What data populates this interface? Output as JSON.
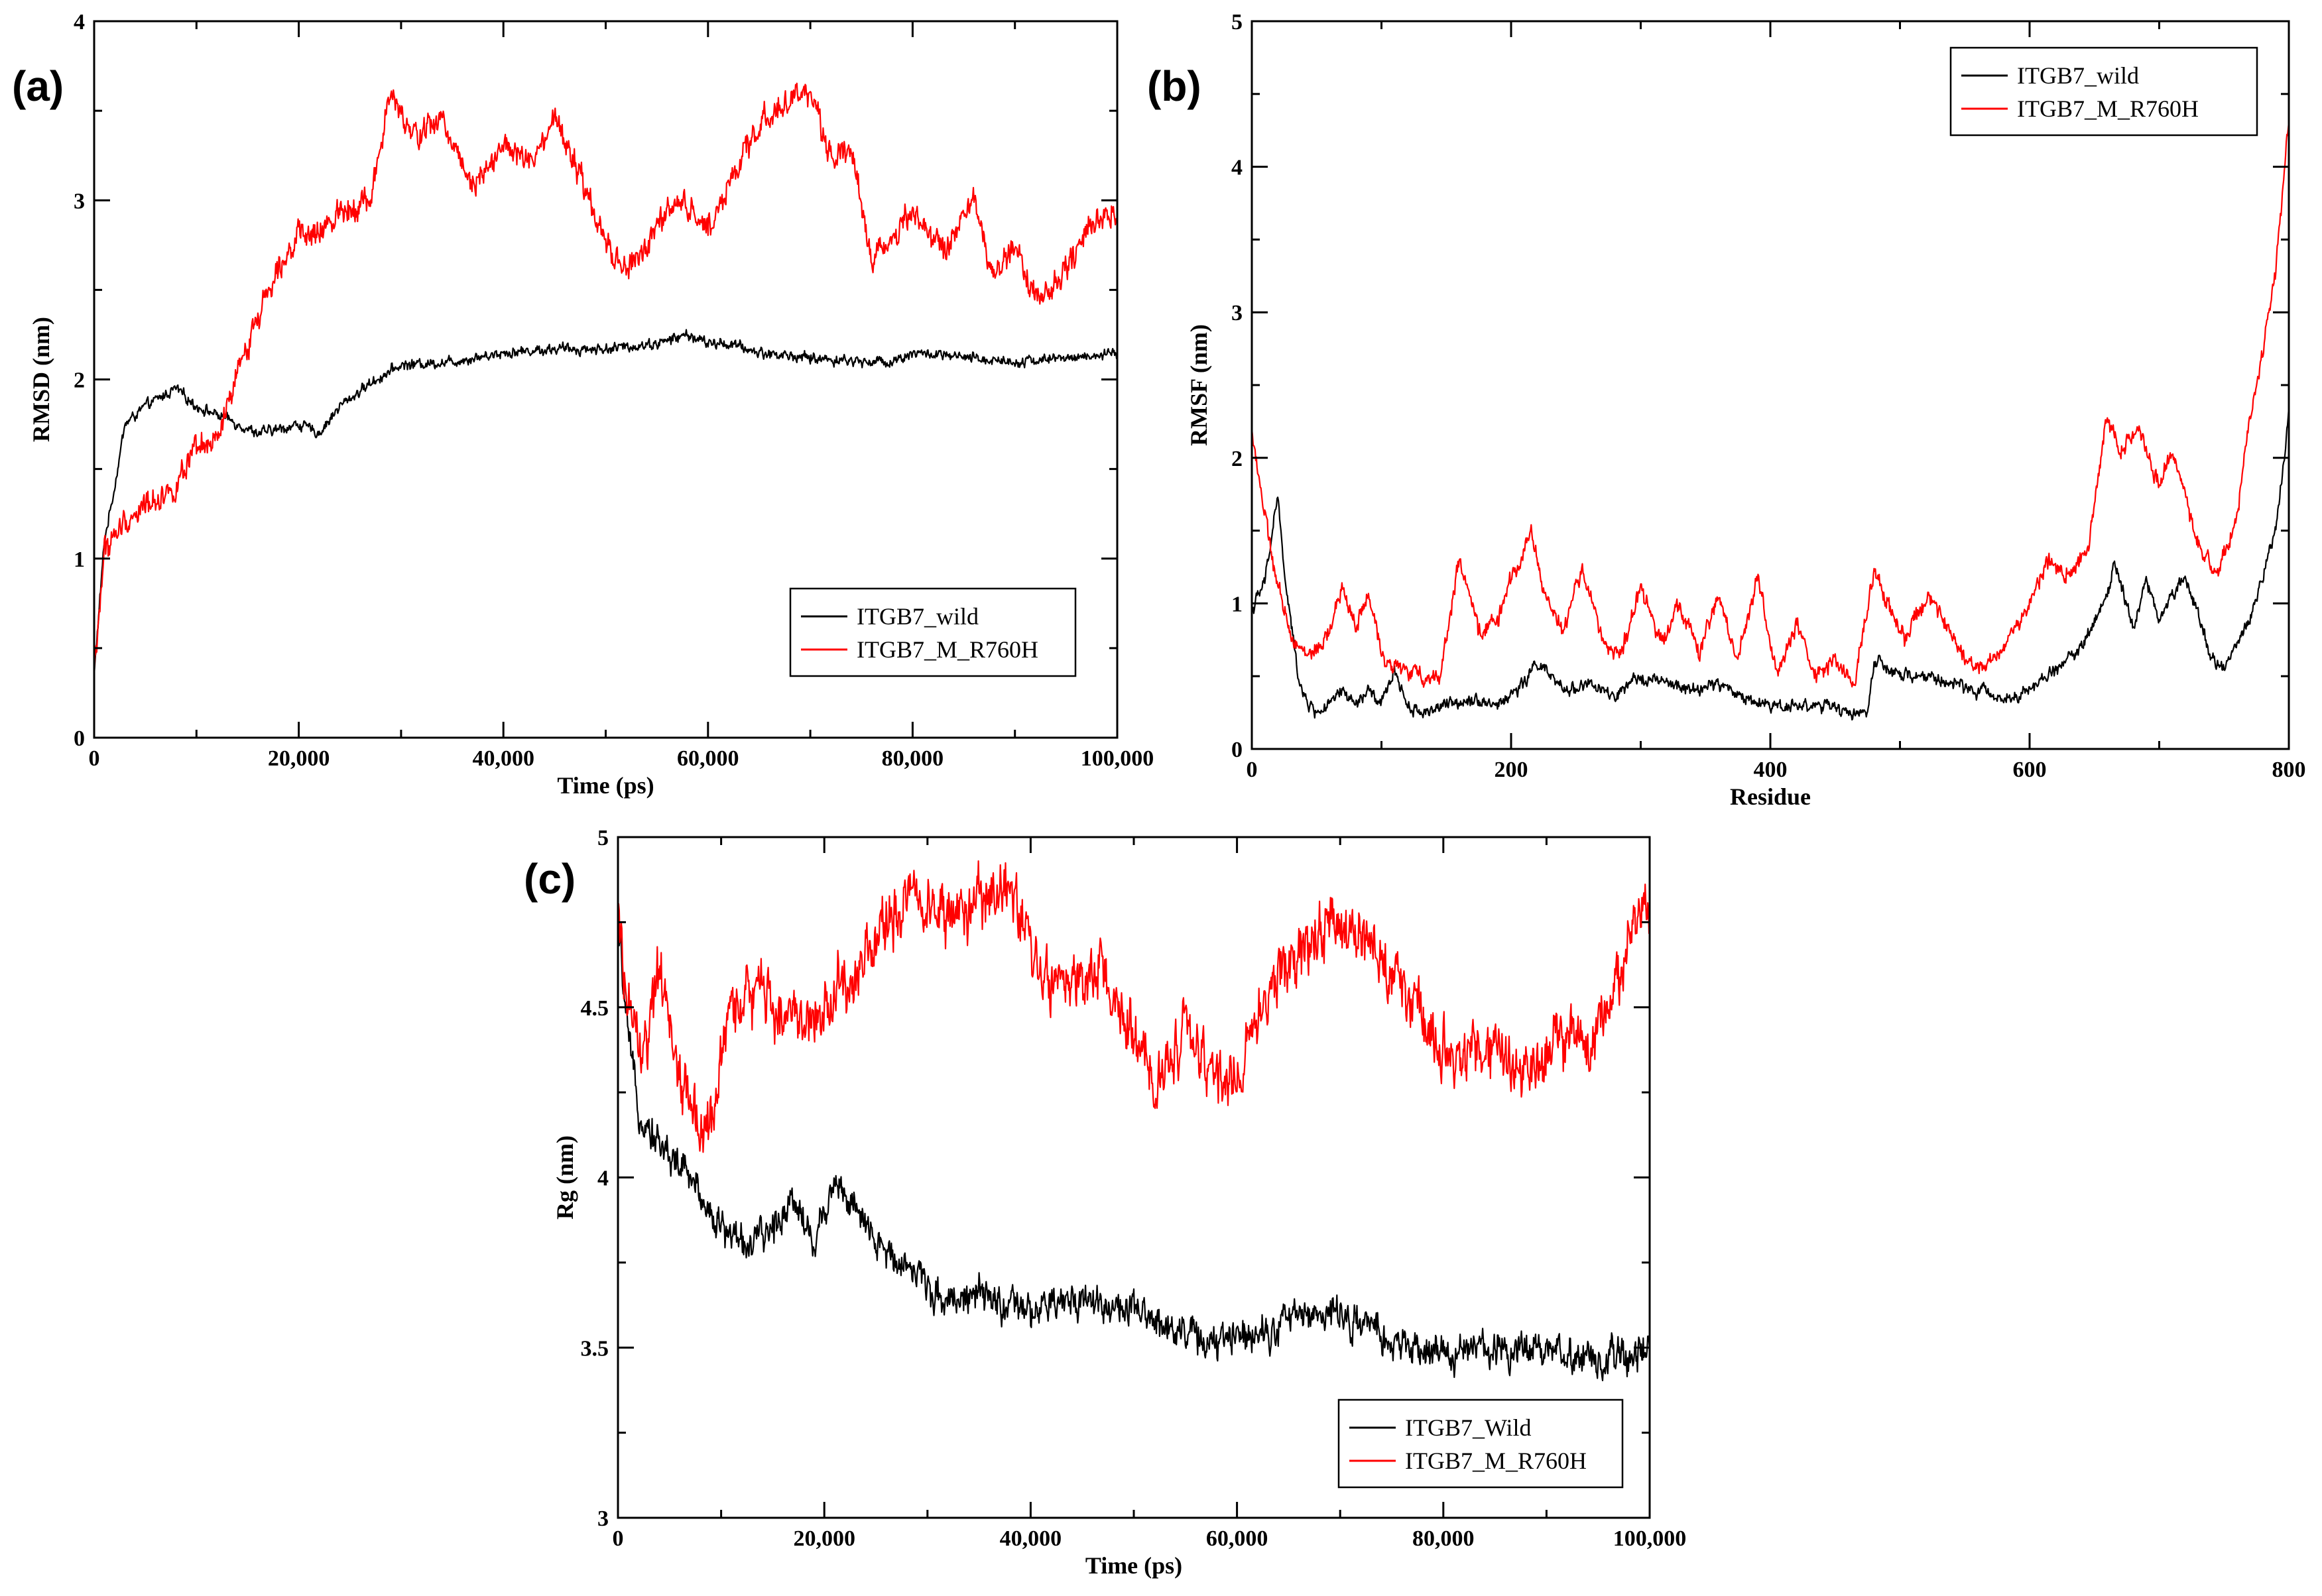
{
  "chart_data": [
    {
      "panel": "(a)",
      "type": "line",
      "xlabel": "Time (ps)",
      "ylabel": "RMSD (nm)",
      "xlim": [
        0,
        100000
      ],
      "ylim": [
        0,
        4
      ],
      "xticks": [
        0,
        20000,
        40000,
        60000,
        80000,
        100000
      ],
      "xtick_labels": [
        "0",
        "20,000",
        "40,000",
        "60,000",
        "80,000",
        "100,000"
      ],
      "yticks": [
        0,
        1,
        2,
        3,
        4
      ],
      "ytick_labels": [
        "0",
        "1",
        "2",
        "3",
        "4"
      ],
      "legend_position": "lower-right",
      "series": [
        {
          "name": "ITGB7_wild",
          "color": "#000000",
          "noise": 0.02,
          "x": [
            0,
            1000,
            2000,
            3000,
            5000,
            8000,
            10000,
            13000,
            16000,
            18000,
            20000,
            22000,
            24000,
            27000,
            30000,
            35000,
            40000,
            45000,
            50000,
            55000,
            58000,
            60000,
            62000,
            65000,
            70000,
            75000,
            78000,
            80000,
            85000,
            90000,
            95000,
            100000
          ],
          "values": [
            0.35,
            1.1,
            1.4,
            1.75,
            1.85,
            1.95,
            1.85,
            1.78,
            1.7,
            1.72,
            1.75,
            1.7,
            1.85,
            1.98,
            2.08,
            2.1,
            2.15,
            2.17,
            2.17,
            2.2,
            2.25,
            2.2,
            2.2,
            2.15,
            2.12,
            2.1,
            2.1,
            2.15,
            2.12,
            2.1,
            2.12,
            2.14
          ]
        },
        {
          "name": "ITGB7_M_R760H",
          "color": "#ff0000",
          "noise": 0.05,
          "x": [
            0,
            1000,
            3000,
            5000,
            8000,
            10000,
            12000,
            15000,
            18000,
            20000,
            22000,
            24000,
            27000,
            29000,
            31000,
            34000,
            37000,
            40000,
            43000,
            45000,
            47000,
            50000,
            52000,
            54000,
            57000,
            60000,
            63000,
            66000,
            68000,
            70000,
            72000,
            74000,
            76000,
            80000,
            83000,
            86000,
            88000,
            90000,
            92000,
            95000,
            97000,
            100000
          ],
          "values": [
            0.35,
            1.05,
            1.2,
            1.3,
            1.4,
            1.6,
            1.65,
            2.2,
            2.65,
            2.8,
            2.8,
            2.95,
            3.0,
            3.6,
            3.35,
            3.45,
            3.1,
            3.3,
            3.2,
            3.45,
            3.2,
            2.75,
            2.6,
            2.75,
            3.0,
            2.85,
            3.2,
            3.5,
            3.55,
            3.6,
            3.25,
            3.3,
            2.65,
            2.95,
            2.7,
            3.0,
            2.55,
            2.75,
            2.45,
            2.6,
            2.85,
            2.95
          ]
        }
      ]
    },
    {
      "panel": "(b)",
      "type": "line",
      "xlabel": "Residue",
      "ylabel": "RMSF (nm)",
      "xlim": [
        0,
        800
      ],
      "ylim": [
        0,
        5
      ],
      "xticks": [
        0,
        200,
        400,
        600,
        800
      ],
      "xtick_labels": [
        "0",
        "200",
        "400",
        "600",
        "800"
      ],
      "yticks": [
        0,
        1,
        2,
        3,
        4,
        5
      ],
      "ytick_labels": [
        "0",
        "1",
        "2",
        "3",
        "4",
        "5"
      ],
      "legend_position": "top-right",
      "series": [
        {
          "name": "ITGB7_wild",
          "color": "#000000",
          "noise": 0.03,
          "x": [
            0,
            5,
            10,
            20,
            25,
            35,
            40,
            50,
            60,
            70,
            80,
            90,
            100,
            110,
            120,
            130,
            150,
            170,
            190,
            210,
            220,
            240,
            260,
            280,
            300,
            320,
            340,
            360,
            380,
            400,
            420,
            440,
            460,
            475,
            480,
            500,
            520,
            540,
            560,
            580,
            600,
            620,
            640,
            660,
            665,
            680,
            690,
            700,
            720,
            740,
            750,
            770,
            790,
            800
          ],
          "values": [
            0.95,
            1.05,
            1.15,
            1.75,
            1.2,
            0.55,
            0.35,
            0.25,
            0.3,
            0.4,
            0.3,
            0.4,
            0.3,
            0.55,
            0.3,
            0.25,
            0.3,
            0.35,
            0.3,
            0.45,
            0.6,
            0.4,
            0.45,
            0.35,
            0.5,
            0.45,
            0.4,
            0.45,
            0.35,
            0.3,
            0.3,
            0.3,
            0.25,
            0.25,
            0.6,
            0.5,
            0.5,
            0.45,
            0.4,
            0.35,
            0.4,
            0.55,
            0.7,
            1.05,
            1.3,
            0.85,
            1.15,
            0.9,
            1.2,
            0.65,
            0.55,
            0.9,
            1.5,
            2.3
          ]
        },
        {
          "name": "ITGB7_M_R760H",
          "color": "#ff0000",
          "noise": 0.04,
          "x": [
            0,
            5,
            10,
            20,
            30,
            40,
            55,
            70,
            80,
            90,
            100,
            115,
            130,
            145,
            160,
            175,
            190,
            200,
            215,
            225,
            240,
            255,
            270,
            285,
            300,
            315,
            330,
            345,
            360,
            375,
            390,
            405,
            420,
            435,
            450,
            465,
            480,
            490,
            505,
            520,
            535,
            550,
            565,
            580,
            600,
            615,
            630,
            645,
            660,
            670,
            685,
            700,
            710,
            730,
            745,
            760,
            770,
            780,
            790,
            800
          ],
          "values": [
            2.2,
            1.9,
            1.6,
            1.1,
            0.8,
            0.65,
            0.7,
            1.1,
            0.85,
            1.05,
            0.65,
            0.55,
            0.5,
            0.5,
            1.3,
            0.8,
            0.9,
            1.15,
            1.5,
            1.1,
            0.8,
            1.25,
            0.75,
            0.65,
            1.1,
            0.75,
            1.0,
            0.65,
            1.05,
            0.6,
            1.2,
            0.5,
            0.85,
            0.5,
            0.6,
            0.45,
            1.25,
            1.0,
            0.75,
            1.05,
            0.85,
            0.6,
            0.55,
            0.7,
            1.0,
            1.3,
            1.2,
            1.35,
            2.3,
            2.05,
            2.2,
            1.8,
            2.05,
            1.4,
            1.2,
            1.6,
            2.3,
            2.75,
            3.3,
            4.35
          ]
        }
      ]
    },
    {
      "panel": "(c)",
      "type": "line",
      "xlabel": "Time (ps)",
      "ylabel": "Rg (nm)",
      "xlim": [
        0,
        100000
      ],
      "ylim": [
        3,
        5
      ],
      "xticks": [
        0,
        20000,
        40000,
        60000,
        80000,
        100000
      ],
      "xtick_labels": [
        "0",
        "20,000",
        "40,000",
        "60,000",
        "80,000",
        "100,000"
      ],
      "yticks": [
        3,
        3.5,
        4,
        4.5,
        5
      ],
      "ytick_labels": [
        "3",
        "3.5",
        "4",
        "4.5",
        "5"
      ],
      "legend_position": "lower-right",
      "series": [
        {
          "name": "ITGB7_Wild",
          "color": "#000000",
          "noise": 0.035,
          "x": [
            0,
            1000,
            2000,
            4000,
            7000,
            10000,
            13000,
            15000,
            17000,
            19000,
            21000,
            23000,
            25000,
            28000,
            31000,
            35000,
            40000,
            45000,
            50000,
            55000,
            58000,
            60000,
            63000,
            66000,
            70000,
            73000,
            76000,
            80000,
            85000,
            90000,
            95000,
            100000
          ],
          "values": [
            4.75,
            4.4,
            4.2,
            4.1,
            4.0,
            3.85,
            3.8,
            3.85,
            3.95,
            3.8,
            4.0,
            3.9,
            3.8,
            3.75,
            3.65,
            3.65,
            3.6,
            3.65,
            3.6,
            3.55,
            3.5,
            3.55,
            3.55,
            3.6,
            3.6,
            3.55,
            3.5,
            3.48,
            3.5,
            3.5,
            3.45,
            3.5
          ]
        },
        {
          "name": "ITGB7_M_R760H",
          "color": "#ff0000",
          "noise": 0.06,
          "x": [
            0,
            1000,
            2500,
            4000,
            6000,
            8500,
            11000,
            14000,
            17000,
            20000,
            23000,
            26000,
            29000,
            32000,
            35000,
            38000,
            41000,
            44000,
            47000,
            50000,
            52000,
            55000,
            57000,
            60000,
            63000,
            66000,
            69000,
            72000,
            75000,
            78000,
            81000,
            84000,
            87000,
            89000,
            91000,
            94000,
            97000,
            100000
          ],
          "values": [
            4.75,
            4.5,
            4.35,
            4.6,
            4.3,
            4.1,
            4.5,
            4.55,
            4.45,
            4.5,
            4.6,
            4.75,
            4.85,
            4.75,
            4.8,
            4.85,
            4.6,
            4.55,
            4.6,
            4.4,
            4.25,
            4.45,
            4.3,
            4.3,
            4.55,
            4.65,
            4.75,
            4.7,
            4.6,
            4.45,
            4.35,
            4.4,
            4.3,
            4.3,
            4.45,
            4.35,
            4.6,
            4.8
          ]
        }
      ]
    }
  ]
}
